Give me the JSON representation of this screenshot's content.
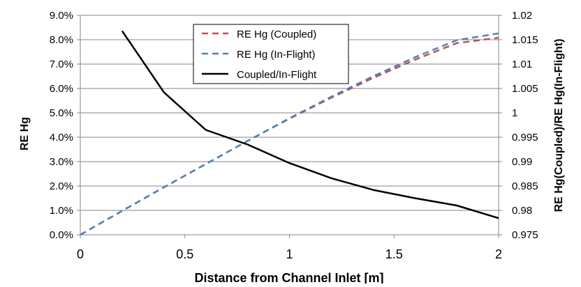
{
  "chart_data": {
    "type": "line",
    "title": "",
    "xlabel": "Distance from Channel Inlet [m]",
    "ylabel": "RE Hg",
    "y2label": "RE Hg(Coupled)/RE Hg(In-Flight)",
    "xlim": [
      0,
      2
    ],
    "ylim": [
      0,
      0.09
    ],
    "y2lim": [
      0.975,
      1.02
    ],
    "x_ticks": [
      "0",
      "0.5",
      "1",
      "1.5",
      "2"
    ],
    "y_ticks": [
      "0.0%",
      "1.0%",
      "2.0%",
      "3.0%",
      "4.0%",
      "5.0%",
      "6.0%",
      "7.0%",
      "8.0%",
      "9.0%"
    ],
    "y2_ticks": [
      "0.975",
      "0.98",
      "0.985",
      "0.99",
      "0.995",
      "1",
      "1.005",
      "1.01",
      "1.015",
      "1.02"
    ],
    "grid": "horizontal",
    "legend_position": "top-center",
    "series": [
      {
        "name": "RE Hg (Coupled)",
        "axis": "left",
        "style": "dashed",
        "color": "#c0504d",
        "x": [
          0,
          0.2,
          0.4,
          0.6,
          0.8,
          1.0,
          1.2,
          1.4,
          1.6,
          1.8,
          2.0
        ],
        "y": [
          0.0,
          0.0098,
          0.0195,
          0.029,
          0.0385,
          0.0476,
          0.0562,
          0.0643,
          0.0718,
          0.0786,
          0.0808
        ]
      },
      {
        "name": "RE Hg (In-Flight)",
        "axis": "left",
        "style": "dashed",
        "color": "#4f81bd",
        "x": [
          0,
          0.2,
          0.4,
          0.6,
          0.8,
          1.0,
          1.2,
          1.4,
          1.6,
          1.8,
          2.0
        ],
        "y": [
          0.0,
          0.0098,
          0.0195,
          0.029,
          0.0385,
          0.0478,
          0.0566,
          0.065,
          0.0728,
          0.0798,
          0.0826
        ]
      },
      {
        "name": "Coupled/In-Flight",
        "axis": "right",
        "style": "solid",
        "color": "#000000",
        "x": [
          0.2,
          0.4,
          0.6,
          0.8,
          1.0,
          1.2,
          1.4,
          1.6,
          1.8,
          2.0
        ],
        "y": [
          1.0168,
          1.0042,
          0.9965,
          0.9935,
          0.9897,
          0.9866,
          0.9842,
          0.9825,
          0.981,
          0.9784
        ]
      }
    ]
  }
}
